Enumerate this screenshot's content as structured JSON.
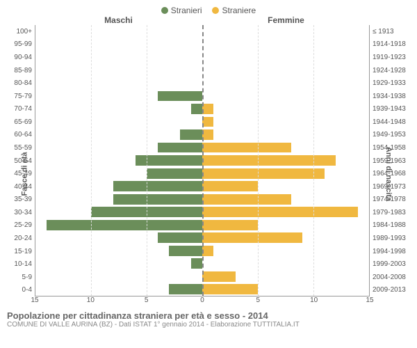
{
  "legend": {
    "male": "Stranieri",
    "female": "Straniere"
  },
  "col_headers": {
    "male": "Maschi",
    "female": "Femmine"
  },
  "axis_labels": {
    "left": "Fasce di età",
    "right": "Anni di nascita"
  },
  "chart": {
    "type": "population-pyramid-bar",
    "male_color": "#6b8e5a",
    "female_color": "#f0b840",
    "background_color": "#ffffff",
    "grid_color": "#dddddd",
    "center_line_color": "#888888",
    "x_max": 15,
    "x_ticks": [
      15,
      10,
      5,
      0,
      5,
      10,
      15
    ],
    "bar_height_ratio": 0.8,
    "rows": [
      {
        "age": "100+",
        "year": "≤ 1913",
        "m": 0,
        "f": 0
      },
      {
        "age": "95-99",
        "year": "1914-1918",
        "m": 0,
        "f": 0
      },
      {
        "age": "90-94",
        "year": "1919-1923",
        "m": 0,
        "f": 0
      },
      {
        "age": "85-89",
        "year": "1924-1928",
        "m": 0,
        "f": 0
      },
      {
        "age": "80-84",
        "year": "1929-1933",
        "m": 0,
        "f": 0
      },
      {
        "age": "75-79",
        "year": "1934-1938",
        "m": 4,
        "f": 0
      },
      {
        "age": "70-74",
        "year": "1939-1943",
        "m": 1,
        "f": 1
      },
      {
        "age": "65-69",
        "year": "1944-1948",
        "m": 0,
        "f": 1
      },
      {
        "age": "60-64",
        "year": "1949-1953",
        "m": 2,
        "f": 1
      },
      {
        "age": "55-59",
        "year": "1954-1958",
        "m": 4,
        "f": 8
      },
      {
        "age": "50-54",
        "year": "1959-1963",
        "m": 6,
        "f": 12
      },
      {
        "age": "45-49",
        "year": "1964-1968",
        "m": 5,
        "f": 11
      },
      {
        "age": "40-44",
        "year": "1969-1973",
        "m": 8,
        "f": 5
      },
      {
        "age": "35-39",
        "year": "1974-1978",
        "m": 8,
        "f": 8
      },
      {
        "age": "30-34",
        "year": "1979-1983",
        "m": 10,
        "f": 14
      },
      {
        "age": "25-29",
        "year": "1984-1988",
        "m": 14,
        "f": 5
      },
      {
        "age": "20-24",
        "year": "1989-1993",
        "m": 4,
        "f": 9
      },
      {
        "age": "15-19",
        "year": "1994-1998",
        "m": 3,
        "f": 1
      },
      {
        "age": "10-14",
        "year": "1999-2003",
        "m": 1,
        "f": 0
      },
      {
        "age": "5-9",
        "year": "2004-2008",
        "m": 0,
        "f": 3
      },
      {
        "age": "0-4",
        "year": "2009-2013",
        "m": 3,
        "f": 5
      }
    ]
  },
  "footer": {
    "title": "Popolazione per cittadinanza straniera per età e sesso - 2014",
    "subtitle": "COMUNE DI VALLE AURINA (BZ) - Dati ISTAT 1° gennaio 2014 - Elaborazione TUTTITALIA.IT"
  }
}
